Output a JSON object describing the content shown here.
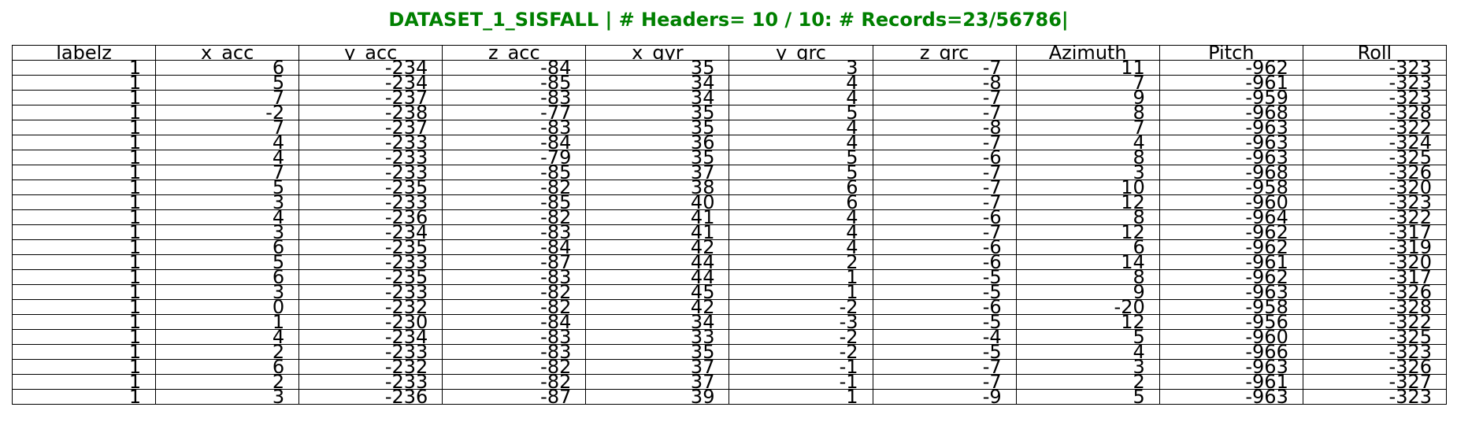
{
  "title": "DATASET_1_SISFALL | # Headers= 10 / 10: # Records=23/56786|",
  "table": {
    "headers": [
      "labelz",
      "x_acc",
      "y_acc",
      "z_acc",
      "x_gyr",
      "y_grc",
      "z_grc",
      "Azimuth",
      "Pitch",
      "Roll"
    ],
    "rows": [
      [
        "1",
        "6",
        "-234",
        "-84",
        "35",
        "3",
        "-7",
        "11",
        "-962",
        "-323"
      ],
      [
        "1",
        "5",
        "-234",
        "-85",
        "34",
        "4",
        "-8",
        "7",
        "-961",
        "-323"
      ],
      [
        "1",
        "7",
        "-237",
        "-83",
        "34",
        "4",
        "-7",
        "9",
        "-959",
        "-323"
      ],
      [
        "1",
        "-2",
        "-238",
        "-77",
        "35",
        "5",
        "-7",
        "8",
        "-968",
        "-328"
      ],
      [
        "1",
        "7",
        "-237",
        "-83",
        "35",
        "4",
        "-8",
        "7",
        "-963",
        "-322"
      ],
      [
        "1",
        "4",
        "-233",
        "-84",
        "36",
        "4",
        "-7",
        "4",
        "-963",
        "-324"
      ],
      [
        "1",
        "4",
        "-233",
        "-79",
        "35",
        "5",
        "-6",
        "8",
        "-963",
        "-325"
      ],
      [
        "1",
        "7",
        "-233",
        "-85",
        "37",
        "5",
        "-7",
        "3",
        "-968",
        "-326"
      ],
      [
        "1",
        "5",
        "-235",
        "-82",
        "38",
        "6",
        "-7",
        "10",
        "-958",
        "-320"
      ],
      [
        "1",
        "3",
        "-233",
        "-85",
        "40",
        "6",
        "-7",
        "12",
        "-960",
        "-323"
      ],
      [
        "1",
        "4",
        "-236",
        "-82",
        "41",
        "4",
        "-6",
        "8",
        "-964",
        "-322"
      ],
      [
        "1",
        "3",
        "-234",
        "-83",
        "41",
        "4",
        "-7",
        "12",
        "-962",
        "-317"
      ],
      [
        "1",
        "6",
        "-235",
        "-84",
        "42",
        "4",
        "-6",
        "6",
        "-962",
        "-319"
      ],
      [
        "1",
        "5",
        "-233",
        "-87",
        "44",
        "2",
        "-6",
        "14",
        "-961",
        "-320"
      ],
      [
        "1",
        "6",
        "-235",
        "-83",
        "44",
        "1",
        "-5",
        "8",
        "-962",
        "-317"
      ],
      [
        "1",
        "3",
        "-233",
        "-82",
        "45",
        "1",
        "-5",
        "9",
        "-963",
        "-326"
      ],
      [
        "1",
        "0",
        "-232",
        "-82",
        "42",
        "-2",
        "-6",
        "-20",
        "-958",
        "-328"
      ],
      [
        "1",
        "1",
        "-230",
        "-84",
        "34",
        "-3",
        "-5",
        "12",
        "-956",
        "-322"
      ],
      [
        "1",
        "4",
        "-234",
        "-83",
        "33",
        "-2",
        "-4",
        "5",
        "-960",
        "-325"
      ],
      [
        "1",
        "2",
        "-233",
        "-83",
        "35",
        "-2",
        "-5",
        "4",
        "-966",
        "-323"
      ],
      [
        "1",
        "6",
        "-232",
        "-82",
        "37",
        "-1",
        "-7",
        "3",
        "-963",
        "-326"
      ],
      [
        "1",
        "2",
        "-233",
        "-82",
        "37",
        "-1",
        "-7",
        "2",
        "-961",
        "-327"
      ],
      [
        "1",
        "3",
        "-236",
        "-87",
        "39",
        "1",
        "-9",
        "5",
        "-963",
        "-323"
      ]
    ]
  }
}
